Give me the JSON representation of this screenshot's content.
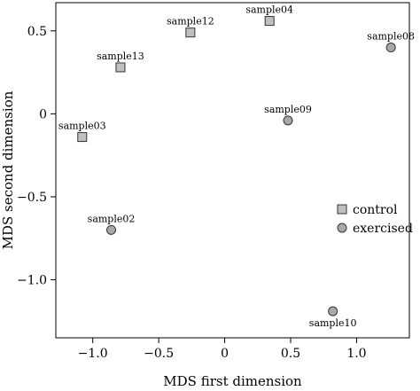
{
  "chart_data": {
    "type": "scatter",
    "xlabel": "MDS first dimension",
    "ylabel": "MDS second dimension",
    "xlim": [
      -1.28,
      1.4
    ],
    "ylim": [
      -1.35,
      0.67
    ],
    "xticks": [
      -1.0,
      -0.5,
      0,
      0.5,
      1.0
    ],
    "xtick_labels": [
      "−1.0",
      "−0.5",
      "0",
      "0.5",
      "1.0"
    ],
    "yticks": [
      0.5,
      0,
      -0.5,
      -1.0
    ],
    "ytick_labels": [
      "0.5",
      "0",
      "−0.5",
      "−1.0"
    ],
    "grid": false,
    "legend_position": "right",
    "series": [
      {
        "name": "control",
        "marker": "square",
        "color": "#c0c0c0",
        "points": [
          {
            "label": "sample12",
            "x": -0.26,
            "y": 0.49
          },
          {
            "label": "sample04",
            "x": 0.34,
            "y": 0.56
          },
          {
            "label": "sample13",
            "x": -0.79,
            "y": 0.28
          },
          {
            "label": "sample03",
            "x": -1.08,
            "y": -0.14
          }
        ]
      },
      {
        "name": "exercised",
        "marker": "circle",
        "color": "#a8a8a8",
        "points": [
          {
            "label": "sample08",
            "x": 1.26,
            "y": 0.4
          },
          {
            "label": "sample09",
            "x": 0.48,
            "y": -0.04
          },
          {
            "label": "sample02",
            "x": -0.86,
            "y": -0.7
          },
          {
            "label": "sample10",
            "x": 0.82,
            "y": -1.19
          }
        ]
      }
    ]
  }
}
